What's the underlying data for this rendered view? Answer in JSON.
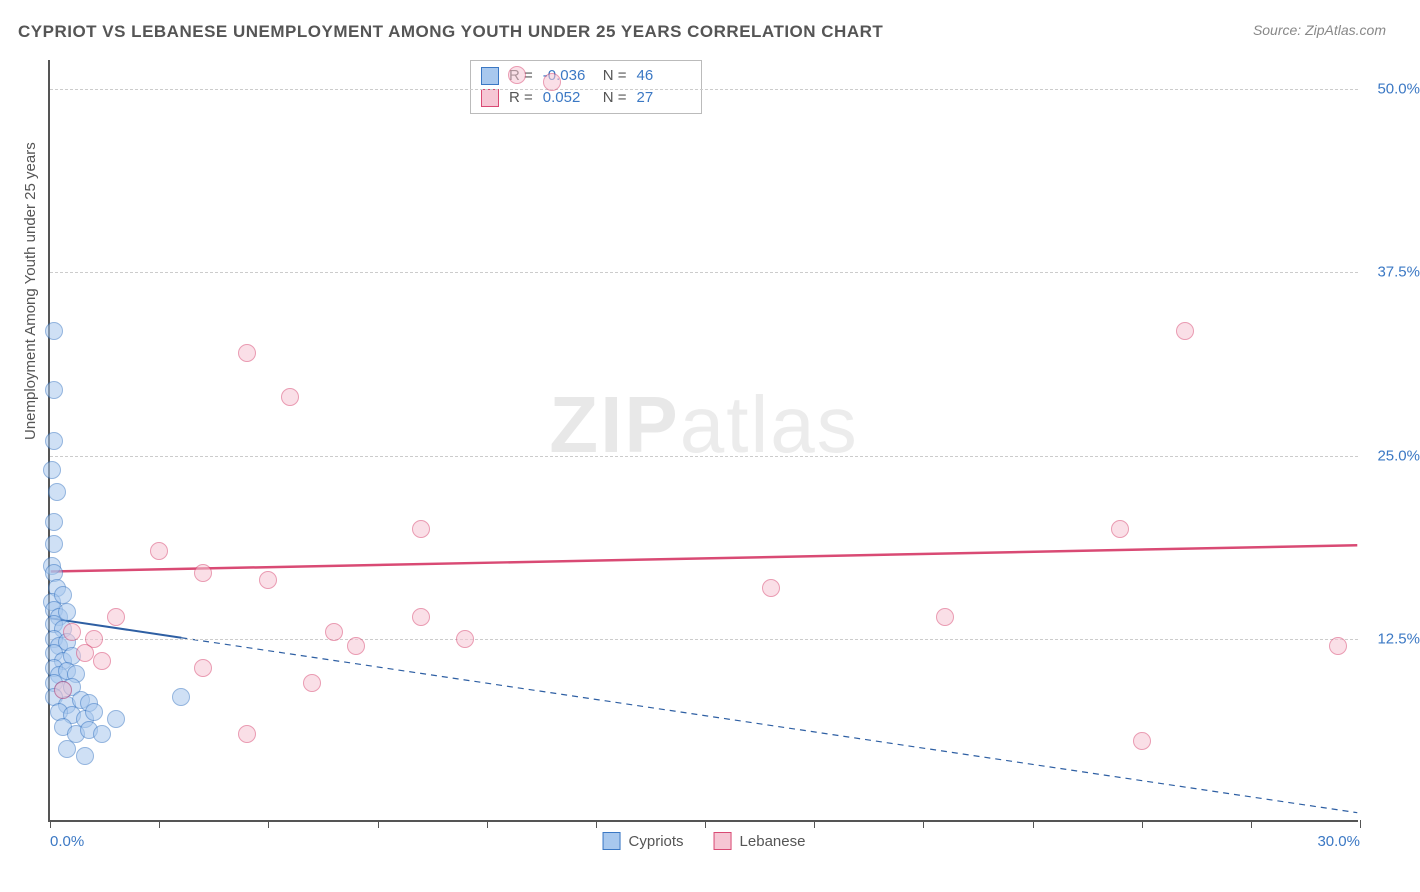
{
  "title": "CYPRIOT VS LEBANESE UNEMPLOYMENT AMONG YOUTH UNDER 25 YEARS CORRELATION CHART",
  "source": "Source: ZipAtlas.com",
  "ylabel": "Unemployment Among Youth under 25 years",
  "watermark_a": "ZIP",
  "watermark_b": "atlas",
  "chart": {
    "type": "scatter",
    "xlim": [
      0,
      30
    ],
    "ylim": [
      0,
      52
    ],
    "xticks": [
      0,
      2.5,
      5,
      7.5,
      10,
      12.5,
      15,
      17.5,
      20,
      22.5,
      25,
      27.5,
      30
    ],
    "xtick_labels": {
      "0": "0.0%",
      "30": "30.0%"
    },
    "yticks": [
      12.5,
      25.0,
      37.5,
      50.0
    ],
    "ytick_labels": [
      "12.5%",
      "25.0%",
      "37.5%",
      "50.0%"
    ],
    "background": "#ffffff",
    "grid_color": "#cccccc",
    "axis_color": "#555555",
    "label_fontsize": 15,
    "title_fontsize": 17,
    "title_color": "#555555",
    "tick_label_color": "#3b78c4",
    "marker_radius": 9,
    "marker_opacity": 0.55,
    "series": [
      {
        "name": "Cypriots",
        "fill": "#a8c8ee",
        "stroke": "#3b78c4",
        "points": [
          [
            0.1,
            33.5
          ],
          [
            0.1,
            29.5
          ],
          [
            0.1,
            26.0
          ],
          [
            0.05,
            24.0
          ],
          [
            0.15,
            22.5
          ],
          [
            0.1,
            20.5
          ],
          [
            0.1,
            19.0
          ],
          [
            0.05,
            17.5
          ],
          [
            0.1,
            17.0
          ],
          [
            0.15,
            16.0
          ],
          [
            0.05,
            15.0
          ],
          [
            0.3,
            15.5
          ],
          [
            0.1,
            14.5
          ],
          [
            0.2,
            14.0
          ],
          [
            0.4,
            14.3
          ],
          [
            0.1,
            13.5
          ],
          [
            0.3,
            13.2
          ],
          [
            0.1,
            12.5
          ],
          [
            0.2,
            12.0
          ],
          [
            0.4,
            12.3
          ],
          [
            0.1,
            11.5
          ],
          [
            0.3,
            11.0
          ],
          [
            0.5,
            11.3
          ],
          [
            0.1,
            10.5
          ],
          [
            0.2,
            10.0
          ],
          [
            0.4,
            10.3
          ],
          [
            0.6,
            10.1
          ],
          [
            0.1,
            9.5
          ],
          [
            0.3,
            9.0
          ],
          [
            0.5,
            9.2
          ],
          [
            0.1,
            8.5
          ],
          [
            0.4,
            8.0
          ],
          [
            0.7,
            8.3
          ],
          [
            0.9,
            8.1
          ],
          [
            0.2,
            7.5
          ],
          [
            0.5,
            7.3
          ],
          [
            0.8,
            7.0
          ],
          [
            1.0,
            7.5
          ],
          [
            0.3,
            6.5
          ],
          [
            0.6,
            6.0
          ],
          [
            0.9,
            6.3
          ],
          [
            1.2,
            6.0
          ],
          [
            0.4,
            5.0
          ],
          [
            0.8,
            4.5
          ],
          [
            1.5,
            7.0
          ],
          [
            3.0,
            8.5
          ]
        ],
        "trend": {
          "x1": 0,
          "y1": 13.8,
          "x2": 30,
          "y2": 0.5,
          "solid_until_x": 3.0,
          "color": "#2e5fa3",
          "width": 2
        }
      },
      {
        "name": "Lebanese",
        "fill": "#f6c6d4",
        "stroke": "#d94a74",
        "points": [
          [
            10.7,
            51.0
          ],
          [
            11.5,
            50.5
          ],
          [
            4.5,
            32.0
          ],
          [
            5.5,
            29.0
          ],
          [
            26.0,
            33.5
          ],
          [
            8.5,
            20.0
          ],
          [
            2.5,
            18.5
          ],
          [
            24.5,
            20.0
          ],
          [
            3.5,
            17.0
          ],
          [
            5.0,
            16.5
          ],
          [
            16.5,
            16.0
          ],
          [
            1.5,
            14.0
          ],
          [
            8.5,
            14.0
          ],
          [
            20.5,
            14.0
          ],
          [
            6.5,
            13.0
          ],
          [
            9.5,
            12.5
          ],
          [
            1.0,
            12.5
          ],
          [
            0.5,
            13.0
          ],
          [
            7.0,
            12.0
          ],
          [
            0.8,
            11.5
          ],
          [
            29.5,
            12.0
          ],
          [
            1.2,
            11.0
          ],
          [
            3.5,
            10.5
          ],
          [
            6.0,
            9.5
          ],
          [
            0.3,
            9.0
          ],
          [
            4.5,
            6.0
          ],
          [
            25.0,
            5.5
          ]
        ],
        "trend": {
          "x1": 0,
          "y1": 17.0,
          "x2": 30,
          "y2": 18.8,
          "solid_until_x": 30,
          "color": "#d94a74",
          "width": 2.5
        }
      }
    ]
  },
  "stats_legend": {
    "rows": [
      {
        "swatch_fill": "#a8c8ee",
        "swatch_stroke": "#3b78c4",
        "r_label": "R =",
        "r": "-0.036",
        "n_label": "N =",
        "n": "46"
      },
      {
        "swatch_fill": "#f6c6d4",
        "swatch_stroke": "#d94a74",
        "r_label": "R =",
        "r": "0.052",
        "n_label": "N =",
        "n": "27"
      }
    ]
  },
  "series_legend": {
    "items": [
      {
        "swatch_fill": "#a8c8ee",
        "swatch_stroke": "#3b78c4",
        "label": "Cypriots"
      },
      {
        "swatch_fill": "#f6c6d4",
        "swatch_stroke": "#d94a74",
        "label": "Lebanese"
      }
    ]
  }
}
